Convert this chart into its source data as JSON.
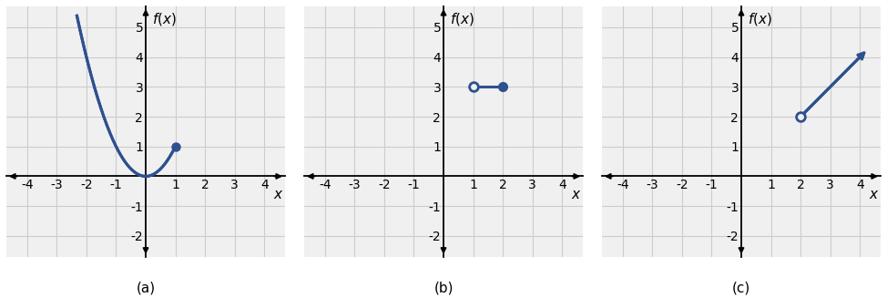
{
  "title_a": "$f(x)$",
  "title_b": "$f(x)$",
  "title_c": "$f(x)$",
  "label_a": "(a)",
  "label_b": "(b)",
  "label_c": "(c)",
  "xlim": [
    -4.7,
    4.7
  ],
  "ylim": [
    -2.7,
    5.7
  ],
  "xticks": [
    -4,
    -3,
    -2,
    -1,
    1,
    2,
    3,
    4
  ],
  "yticks": [
    -2,
    -1,
    1,
    2,
    3,
    4,
    5
  ],
  "line_color": "#2e5090",
  "bg_color": "#f0f0f0",
  "grid_color": "#cccccc",
  "curve_a_x_min": -2.32,
  "curve_a_x_max": 1.0,
  "closed_dot_a": [
    1,
    1
  ],
  "segment_b_x1": 1.0,
  "segment_b_x2": 2.0,
  "segment_b_y": 3.0,
  "open_dot_b": [
    1,
    3
  ],
  "closed_dot_b": [
    2,
    3
  ],
  "segment_c_x1": 2.0,
  "segment_c_x2": 4.05,
  "open_dot_c": [
    2,
    2
  ],
  "figsize": [
    9.74,
    3.27
  ],
  "dpi": 100
}
